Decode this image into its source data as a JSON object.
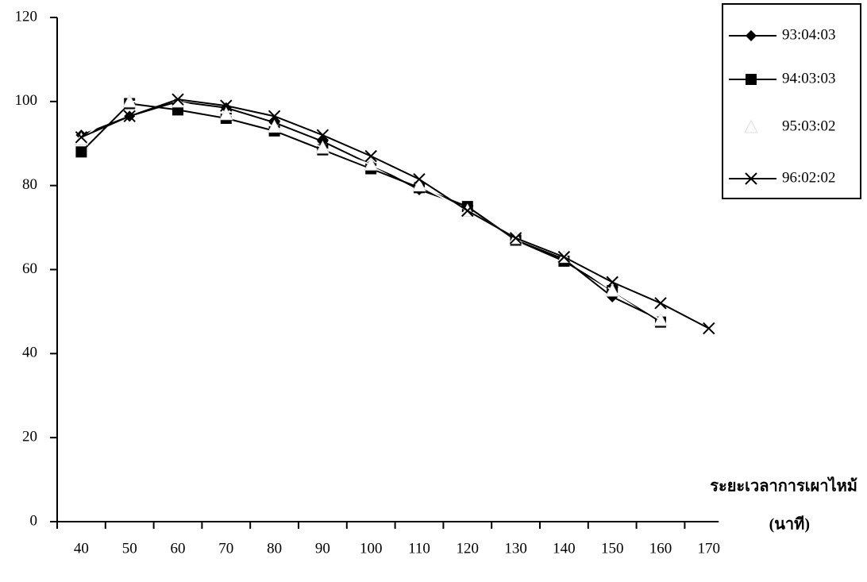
{
  "chart_data": {
    "type": "line",
    "x_label": "ระยะเวลาการเผาไหม้",
    "x_unit": "(นาที)",
    "categories": [
      "40",
      "50",
      "60",
      "70",
      "80",
      "90",
      "100",
      "110",
      "120",
      "130",
      "140",
      "150",
      "160",
      "170"
    ],
    "series": [
      {
        "name": "93:04:03",
        "color": "#000000",
        "marker": "diamond",
        "values": [
          92,
          96.5,
          100,
          98.5,
          95,
          90.5,
          85,
          79,
          75,
          67,
          62.5,
          53.5,
          48,
          null
        ]
      },
      {
        "name": "94:03:03",
        "color": "#000000",
        "marker": "square",
        "values": [
          88,
          99.5,
          98,
          96,
          93,
          88.5,
          84,
          79.5,
          75,
          67,
          62,
          55,
          47.5,
          null
        ]
      },
      {
        "name": "95:03:02",
        "color": "#ffffff",
        "marker": "triangle",
        "values": [
          91,
          100,
          100,
          97,
          94,
          89,
          85,
          80,
          74,
          67.5,
          63,
          55,
          48,
          null
        ]
      },
      {
        "name": "96:02:02",
        "color": "#000000",
        "marker": "x",
        "values": [
          91.5,
          96.5,
          100.5,
          99,
          96.5,
          92,
          87,
          81.5,
          74,
          67.5,
          63,
          57,
          52,
          46
        ]
      }
    ],
    "ylim": [
      0,
      120
    ],
    "yticks": [
      0,
      20,
      40,
      60,
      80,
      100,
      120
    ],
    "grid": false
  }
}
